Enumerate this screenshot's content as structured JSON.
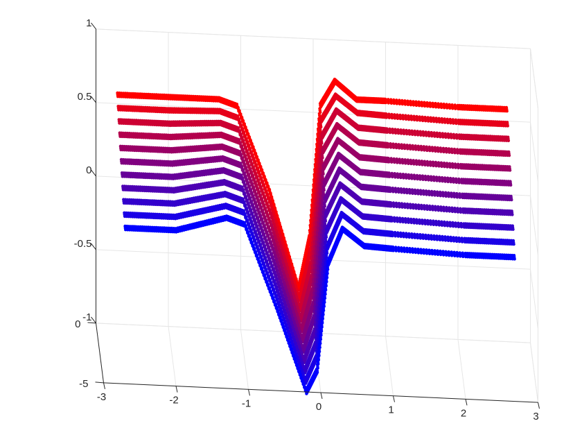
{
  "chart_data": {
    "type": "scatter",
    "title": "",
    "xlabel": "",
    "ylabel": "",
    "zlabel": "",
    "xlim": [
      -3,
      3
    ],
    "ylim": [
      -5,
      0
    ],
    "zlim": [
      -1,
      1
    ],
    "grid": true,
    "x_ticks": [
      "-3",
      "-2",
      "-1",
      "0",
      "1",
      "2",
      "3"
    ],
    "y_ticks": [
      "-5",
      "0"
    ],
    "z_ticks": [
      "-1",
      "-0.5",
      "0",
      "0.5",
      "1"
    ],
    "color_gradient": [
      "#ff0000",
      "#0000ff"
    ],
    "series": [
      {
        "y": 0,
        "color": "#ff0000",
        "x": [
          -2.7,
          -2.0,
          -1.3,
          -1.05,
          -0.6,
          -0.2,
          -0.05,
          0.1,
          0.3,
          0.6,
          1.0,
          2.0,
          2.7
        ],
        "z": [
          0.56,
          0.56,
          0.56,
          0.52,
          -0.05,
          -0.7,
          -0.35,
          0.55,
          0.72,
          0.6,
          0.6,
          0.58,
          0.58
        ]
      },
      {
        "y": -0.5,
        "color": "#e6001a",
        "x": [
          -2.7,
          -2.0,
          -1.3,
          -1.05,
          -0.6,
          -0.2,
          -0.05,
          0.1,
          0.3,
          0.6,
          1.0,
          2.0,
          2.7
        ],
        "z": [
          0.51,
          0.51,
          0.52,
          0.48,
          -0.09,
          -0.73,
          -0.4,
          0.49,
          0.66,
          0.55,
          0.54,
          0.52,
          0.52
        ]
      },
      {
        "y": -1.0,
        "color": "#cc0033",
        "x": [
          -2.7,
          -2.0,
          -1.3,
          -1.05,
          -0.6,
          -0.2,
          -0.05,
          0.1,
          0.3,
          0.6,
          1.0,
          2.0,
          2.7
        ],
        "z": [
          0.46,
          0.46,
          0.48,
          0.44,
          -0.13,
          -0.76,
          -0.45,
          0.42,
          0.6,
          0.49,
          0.48,
          0.46,
          0.46
        ]
      },
      {
        "y": -1.5,
        "color": "#b3004d",
        "x": [
          -2.7,
          -2.0,
          -1.3,
          -1.05,
          -0.6,
          -0.2,
          -0.05,
          0.1,
          0.3,
          0.6,
          1.0,
          2.0,
          2.7
        ],
        "z": [
          0.41,
          0.41,
          0.44,
          0.4,
          -0.17,
          -0.79,
          -0.5,
          0.36,
          0.54,
          0.43,
          0.42,
          0.4,
          0.4
        ]
      },
      {
        "y": -2.0,
        "color": "#990066",
        "x": [
          -2.7,
          -2.0,
          -1.3,
          -1.05,
          -0.6,
          -0.2,
          -0.05,
          0.1,
          0.3,
          0.6,
          1.0,
          2.0,
          2.7
        ],
        "z": [
          0.36,
          0.36,
          0.4,
          0.36,
          -0.21,
          -0.82,
          -0.55,
          0.29,
          0.48,
          0.37,
          0.36,
          0.34,
          0.34
        ]
      },
      {
        "y": -2.5,
        "color": "#800080",
        "x": [
          -2.7,
          -2.0,
          -1.3,
          -1.05,
          -0.6,
          -0.2,
          -0.05,
          0.1,
          0.3,
          0.6,
          1.0,
          2.0,
          2.7
        ],
        "z": [
          0.31,
          0.31,
          0.36,
          0.32,
          -0.25,
          -0.85,
          -0.6,
          0.22,
          0.42,
          0.31,
          0.3,
          0.28,
          0.28
        ]
      },
      {
        "y": -3.0,
        "color": "#660099",
        "x": [
          -2.7,
          -2.0,
          -1.3,
          -1.05,
          -0.6,
          -0.2,
          -0.05,
          0.1,
          0.3,
          0.6,
          1.0,
          2.0,
          2.7
        ],
        "z": [
          0.26,
          0.26,
          0.32,
          0.28,
          -0.29,
          -0.88,
          -0.65,
          0.15,
          0.36,
          0.25,
          0.24,
          0.22,
          0.22
        ]
      },
      {
        "y": -3.5,
        "color": "#4d00b3",
        "x": [
          -2.7,
          -2.0,
          -1.3,
          -1.05,
          -0.6,
          -0.2,
          -0.05,
          0.1,
          0.3,
          0.6,
          1.0,
          2.0,
          2.7
        ],
        "z": [
          0.21,
          0.21,
          0.28,
          0.24,
          -0.33,
          -0.91,
          -0.7,
          0.09,
          0.3,
          0.19,
          0.18,
          0.16,
          0.16
        ]
      },
      {
        "y": -4.0,
        "color": "#3300cc",
        "x": [
          -2.7,
          -2.0,
          -1.3,
          -1.05,
          -0.6,
          -0.2,
          -0.05,
          0.1,
          0.3,
          0.6,
          1.0,
          2.0,
          2.7
        ],
        "z": [
          0.16,
          0.16,
          0.24,
          0.2,
          -0.37,
          -0.94,
          -0.75,
          0.02,
          0.24,
          0.13,
          0.12,
          0.1,
          0.1
        ]
      },
      {
        "y": -4.5,
        "color": "#1a00e6",
        "x": [
          -2.7,
          -2.0,
          -1.3,
          -1.05,
          -0.6,
          -0.2,
          -0.05,
          0.1,
          0.3,
          0.6,
          1.0,
          2.0,
          2.7
        ],
        "z": [
          0.11,
          0.11,
          0.2,
          0.16,
          -0.41,
          -0.97,
          -0.8,
          -0.05,
          0.18,
          0.07,
          0.06,
          0.04,
          0.04
        ]
      },
      {
        "y": -5.0,
        "color": "#0000ff",
        "x": [
          -2.7,
          -2.0,
          -1.3,
          -1.05,
          -0.6,
          -0.2,
          -0.05,
          0.1,
          0.3,
          0.6,
          1.0,
          2.0,
          2.7
        ],
        "z": [
          0.06,
          0.06,
          0.16,
          0.12,
          -0.45,
          -1.0,
          -0.85,
          -0.12,
          0.12,
          0.01,
          0.0,
          -0.02,
          -0.02
        ]
      }
    ]
  }
}
